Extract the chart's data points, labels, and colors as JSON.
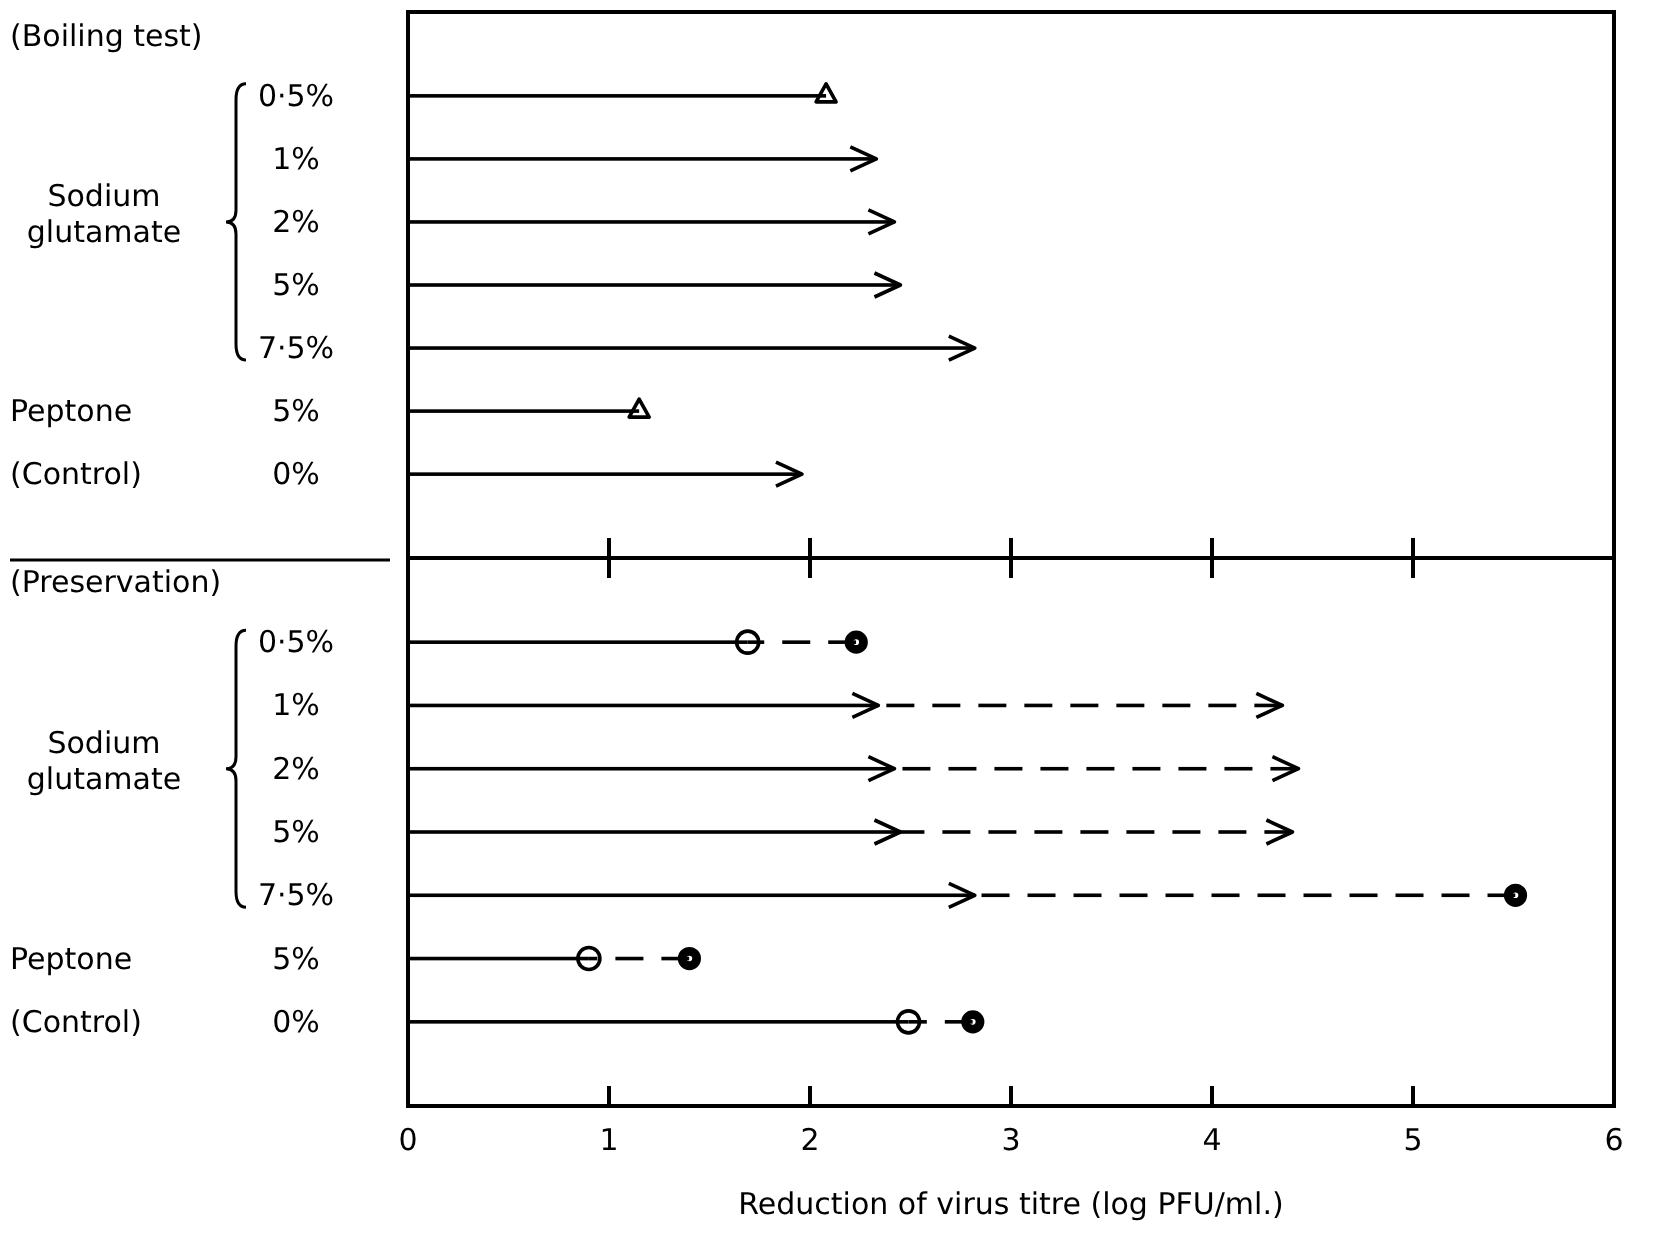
{
  "chart_data": [
    {
      "type": "bar",
      "orientation": "horizontal",
      "title": "(Boiling test)",
      "categories": [
        "0·5%",
        "1%",
        "2%",
        "5%",
        "7·5%",
        "5%",
        "0%"
      ],
      "annotations": [
        "Sodium glutamate",
        "Peptone",
        "(Control)"
      ],
      "xlim": [
        0,
        6
      ],
      "xticks": [
        {
          "value": 0,
          "label": null
        },
        {
          "value": 1,
          "label": null
        },
        {
          "value": 2,
          "label": null
        },
        {
          "value": 3,
          "label": null
        },
        {
          "value": 4,
          "label": null
        },
        {
          "value": 5,
          "label": null
        },
        {
          "value": 6,
          "label": null
        }
      ],
      "tick_labels": "y",
      "series": [
        {
          "color": "#000000",
          "marker": "triangle",
          "line_style": "solid",
          "values": [
            2.08,
            null,
            null,
            null,
            null,
            1.15,
            null
          ]
        },
        {
          "color": "#000000",
          "line_style": "solid",
          "values": [
            null,
            2.33,
            2.42,
            2.45,
            2.82,
            null,
            1.96
          ]
        }
      ]
    },
    {
      "type": "bar",
      "orientation": "horizontal",
      "stacked": true,
      "title": "(Preservation)",
      "xlabel": "Reduction of virus titre (log  PFU/ml.)",
      "categories": [
        "0·5%",
        "1%",
        "2%",
        "5%",
        "7·5%",
        "5%",
        "0%"
      ],
      "annotations": [
        "Sodium glutamate",
        "Peptone",
        "(Control)"
      ],
      "xlim": [
        0,
        6
      ],
      "xticks": [
        0,
        1,
        2,
        3,
        4,
        5,
        6
      ],
      "series": [
        {
          "color": "#000000",
          "marker": "circle",
          "line_style": "solid",
          "values": [
            1.69,
            null,
            null,
            null,
            null,
            0.9,
            2.49
          ]
        },
        {
          "color": "#000000",
          "line_style": "solid",
          "values": [
            null,
            2.34,
            2.42,
            2.45,
            2.82,
            null,
            null
          ]
        },
        {
          "color": "#000000",
          "marker": "circle",
          "line_style": "dashed",
          "values": [
            0.54,
            null,
            null,
            null,
            2.69,
            0.5,
            0.32
          ]
        },
        {
          "color": "#000000",
          "line_style": "dashed",
          "values": [
            null,
            2.01,
            2.01,
            1.95,
            null,
            null,
            null
          ]
        }
      ]
    }
  ]
}
